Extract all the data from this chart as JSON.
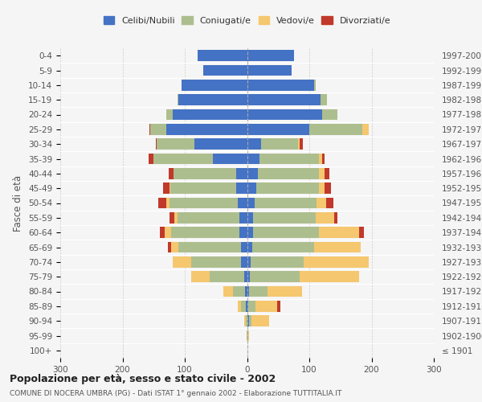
{
  "age_groups": [
    "100+",
    "95-99",
    "90-94",
    "85-89",
    "80-84",
    "75-79",
    "70-74",
    "65-69",
    "60-64",
    "55-59",
    "50-54",
    "45-49",
    "40-44",
    "35-39",
    "30-34",
    "25-29",
    "20-24",
    "15-19",
    "10-14",
    "5-9",
    "0-4"
  ],
  "birth_years": [
    "≤ 1901",
    "1902-1906",
    "1907-1911",
    "1912-1916",
    "1917-1921",
    "1922-1926",
    "1927-1931",
    "1932-1936",
    "1937-1941",
    "1942-1946",
    "1947-1951",
    "1952-1956",
    "1957-1961",
    "1962-1966",
    "1967-1971",
    "1972-1976",
    "1977-1981",
    "1982-1986",
    "1987-1991",
    "1992-1996",
    "1997-2001"
  ],
  "males": {
    "celibi": [
      0,
      0,
      0,
      2,
      3,
      5,
      10,
      10,
      12,
      12,
      15,
      18,
      18,
      55,
      85,
      130,
      120,
      110,
      105,
      70,
      80
    ],
    "coniugati": [
      0,
      1,
      2,
      8,
      20,
      55,
      80,
      100,
      110,
      100,
      110,
      105,
      100,
      95,
      60,
      25,
      10,
      2,
      0,
      0,
      0
    ],
    "vedovi": [
      0,
      0,
      3,
      5,
      15,
      30,
      30,
      12,
      10,
      5,
      5,
      2,
      0,
      0,
      0,
      0,
      0,
      0,
      0,
      0,
      0
    ],
    "divorziati": [
      0,
      0,
      0,
      0,
      0,
      0,
      0,
      5,
      8,
      8,
      12,
      10,
      8,
      8,
      2,
      2,
      0,
      0,
      0,
      0,
      0
    ]
  },
  "females": {
    "nubili": [
      0,
      0,
      3,
      2,
      3,
      5,
      6,
      8,
      10,
      10,
      12,
      15,
      18,
      20,
      22,
      100,
      120,
      118,
      108,
      72,
      75
    ],
    "coniugate": [
      0,
      1,
      4,
      12,
      30,
      80,
      85,
      100,
      105,
      100,
      100,
      100,
      98,
      95,
      60,
      85,
      25,
      10,
      2,
      0,
      0
    ],
    "vedove": [
      1,
      2,
      28,
      35,
      55,
      95,
      105,
      75,
      65,
      30,
      15,
      10,
      8,
      5,
      3,
      10,
      0,
      0,
      0,
      0,
      0
    ],
    "divorziate": [
      0,
      0,
      0,
      5,
      0,
      0,
      0,
      0,
      8,
      5,
      12,
      10,
      8,
      5,
      5,
      0,
      0,
      0,
      0,
      0,
      0
    ]
  },
  "colors": {
    "celibi_nubili": "#4472C4",
    "coniugati": "#ADBE8E",
    "vedovi": "#F5C76E",
    "divorziati": "#C0392B"
  },
  "xlim": 300,
  "title": "Popolazione per età, sesso e stato civile - 2002",
  "subtitle": "COMUNE DI NOCERA UMBRA (PG) - Dati ISTAT 1° gennaio 2002 - Elaborazione TUTTITALIA.IT",
  "ylabel_left": "Fasce di età",
  "legend_labels": [
    "Celibi/Nubili",
    "Coniugati/e",
    "Vedovi/e",
    "Divorziati/e"
  ],
  "bg_color": "#f5f5f5"
}
